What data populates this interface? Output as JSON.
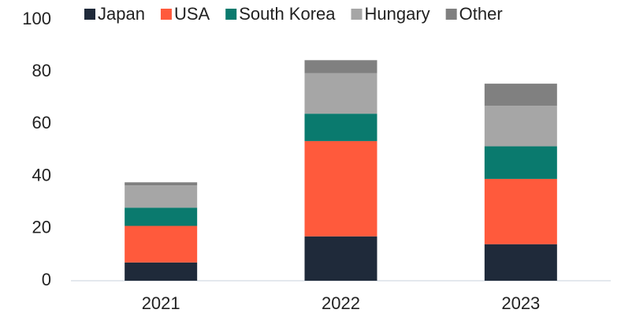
{
  "chart_data": {
    "type": "stacked-bar",
    "categories": [
      "2021",
      "2022",
      "2023"
    ],
    "series": [
      {
        "name": "Japan",
        "color": "#1f2a3a",
        "values": [
          7,
          17,
          14
        ]
      },
      {
        "name": "USA",
        "color": "#ff5a3c",
        "values": [
          14,
          36.5,
          25
        ]
      },
      {
        "name": "South Korea",
        "color": "#0a7a6e",
        "values": [
          7,
          10.5,
          12.5
        ]
      },
      {
        "name": "Hungary",
        "color": "#a6a6a6",
        "values": [
          8.5,
          15.5,
          15.5
        ]
      },
      {
        "name": "Other",
        "color": "#808080",
        "values": [
          1.2,
          5,
          8.5
        ]
      }
    ],
    "ylim": [
      0,
      100
    ],
    "yticks": [
      0,
      20,
      40,
      60,
      80,
      100
    ],
    "grid": false,
    "legend": "top"
  }
}
